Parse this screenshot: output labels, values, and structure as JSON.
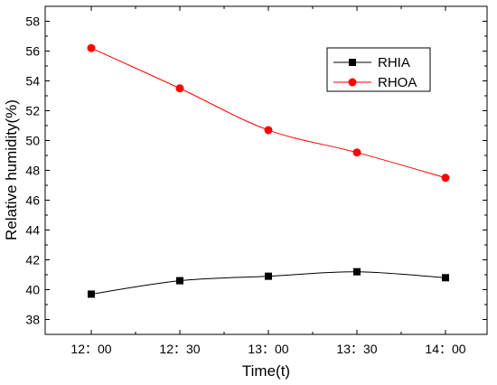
{
  "chart_data": {
    "type": "line",
    "title": "",
    "xlabel": "Time(t)",
    "ylabel": "Relative humidity(%)",
    "categories": [
      "12：00",
      "12：30",
      "13：00",
      "13：30",
      "14：00"
    ],
    "ylim": [
      37,
      59
    ],
    "yticks": [
      38,
      40,
      42,
      44,
      46,
      48,
      50,
      52,
      54,
      56,
      58
    ],
    "grid": false,
    "legend_position": "top-right",
    "series": [
      {
        "name": "RHIA",
        "color": "#000000",
        "marker": "square",
        "values": [
          39.7,
          40.6,
          40.9,
          41.2,
          40.8
        ]
      },
      {
        "name": "RHOA",
        "color": "#ff0000",
        "marker": "circle",
        "values": [
          56.2,
          53.5,
          50.7,
          49.2,
          47.5
        ]
      }
    ]
  }
}
